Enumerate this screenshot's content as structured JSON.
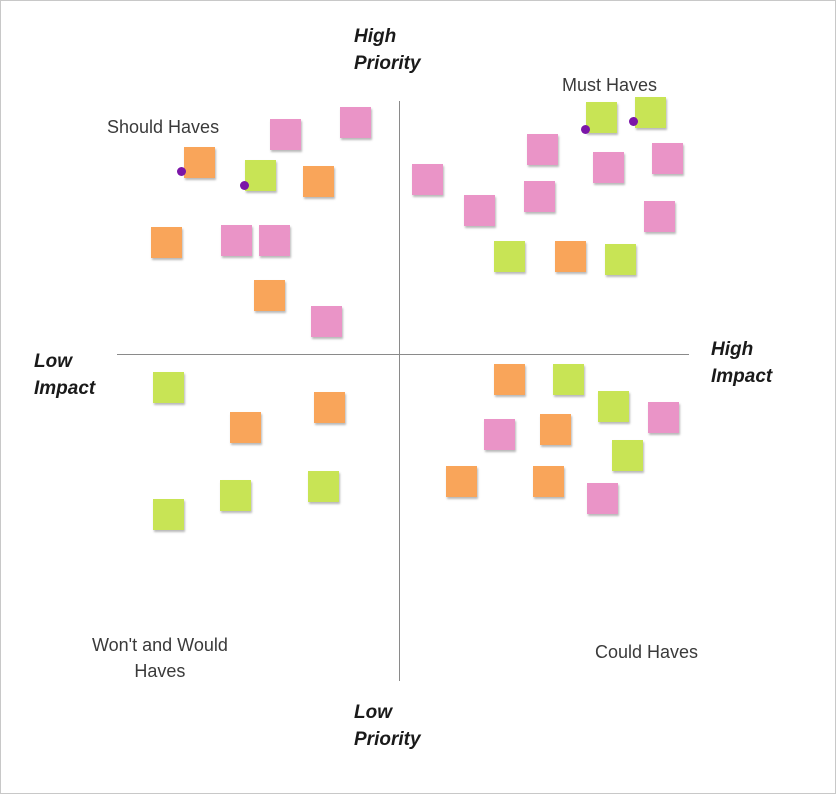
{
  "axes": {
    "top": [
      "High",
      "Priority"
    ],
    "bottom": [
      "Low",
      "Priority"
    ],
    "left": [
      "Low",
      "Impact"
    ],
    "right": [
      "High",
      "Impact"
    ]
  },
  "quadrants": {
    "top_left": "Should Haves",
    "top_right": "Must Haves",
    "bottom_left": [
      "Won't and Would",
      "Haves"
    ],
    "bottom_right": "Could Haves"
  },
  "colors": {
    "pink": "#ea94c7",
    "orange": "#f9a55a",
    "green": "#c8e455",
    "dot": "#7b16a8",
    "axis": "#8a8a8a"
  },
  "notes": [
    {
      "color": "pink",
      "text": ""
    },
    {
      "color": "pink",
      "text": ""
    },
    {
      "color": "orange",
      "text": ""
    },
    {
      "color": "green",
      "text": ""
    },
    {
      "color": "orange",
      "text": ""
    },
    {
      "color": "orange",
      "text": ""
    },
    {
      "color": "pink",
      "text": ""
    },
    {
      "color": "pink",
      "text": ""
    },
    {
      "color": "orange",
      "text": ""
    },
    {
      "color": "pink",
      "text": ""
    },
    {
      "color": "green",
      "text": ""
    },
    {
      "color": "green",
      "text": ""
    },
    {
      "color": "pink",
      "text": ""
    },
    {
      "color": "pink",
      "text": ""
    },
    {
      "color": "pink",
      "text": ""
    },
    {
      "color": "pink",
      "text": ""
    },
    {
      "color": "pink",
      "text": ""
    },
    {
      "color": "pink",
      "text": ""
    },
    {
      "color": "pink",
      "text": ""
    },
    {
      "color": "green",
      "text": ""
    },
    {
      "color": "orange",
      "text": ""
    },
    {
      "color": "green",
      "text": ""
    },
    {
      "color": "green",
      "text": ""
    },
    {
      "color": "orange",
      "text": ""
    },
    {
      "color": "orange",
      "text": ""
    },
    {
      "color": "green",
      "text": ""
    },
    {
      "color": "green",
      "text": ""
    },
    {
      "color": "green",
      "text": ""
    },
    {
      "color": "orange",
      "text": ""
    },
    {
      "color": "green",
      "text": ""
    },
    {
      "color": "green",
      "text": ""
    },
    {
      "color": "pink",
      "text": ""
    },
    {
      "color": "pink",
      "text": ""
    },
    {
      "color": "orange",
      "text": ""
    },
    {
      "color": "green",
      "text": ""
    },
    {
      "color": "orange",
      "text": ""
    },
    {
      "color": "orange",
      "text": ""
    },
    {
      "color": "pink",
      "text": ""
    }
  ],
  "dot_count": 4
}
